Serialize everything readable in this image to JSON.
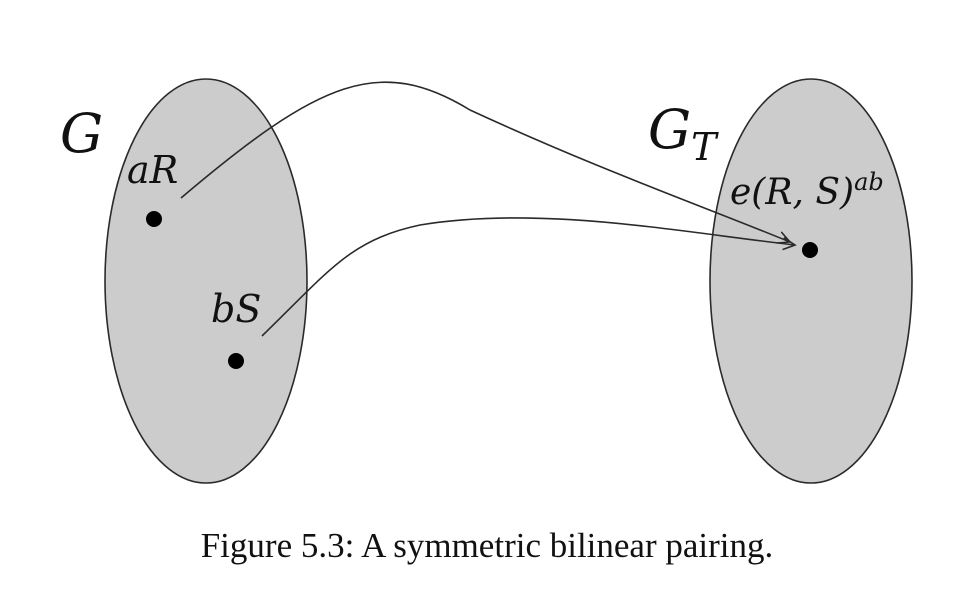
{
  "diagram": {
    "colors": {
      "set_fill": "#cccccc",
      "stroke": "#2a2a2a",
      "text": "#111111",
      "dot": "#000000"
    },
    "sets": [
      {
        "id": "G",
        "label_main": "G",
        "label_sub": ""
      },
      {
        "id": "GT",
        "label_main": "G",
        "label_sub": "T"
      }
    ],
    "points": [
      {
        "id": "aR",
        "label": "aR",
        "set": "G"
      },
      {
        "id": "bS",
        "label": "bS",
        "set": "G"
      },
      {
        "id": "pairing",
        "label_main": "e(R, S)",
        "label_sup": "ab",
        "set": "GT"
      }
    ],
    "arrows": [
      {
        "from": "aR",
        "to": "pairing"
      },
      {
        "from": "bS",
        "to": "pairing"
      }
    ],
    "caption": "Figure 5.3: A symmetric bilinear pairing."
  }
}
